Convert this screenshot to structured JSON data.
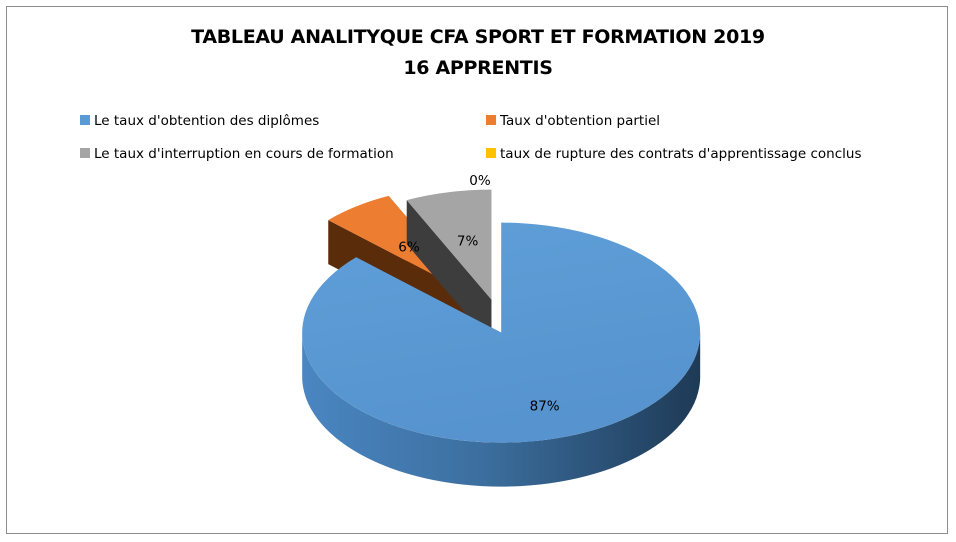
{
  "chart_data": {
    "type": "pie",
    "title_line1": "TABLEAU ANALITYQUE CFA SPORT ET FORMATION 2019",
    "title_line2": "16 APPRENTIS",
    "legend_placement": "top",
    "slices": [
      {
        "label": "Le taux d'obtention des diplômes",
        "value": 87,
        "value_label": "87%",
        "color": "#5B9BD5"
      },
      {
        "label": "Taux d'obtention partiel",
        "value": 6,
        "value_label": "6%",
        "color": "#ED7D31"
      },
      {
        "label": "Le taux d'interruption en cours de formation",
        "value": 7,
        "value_label": "7%",
        "color": "#A5A5A5"
      },
      {
        "label": "taux de rupture des contrats d'apprentissage conclus",
        "value": 0,
        "value_label": "0%",
        "color": "#FFC000"
      }
    ]
  }
}
